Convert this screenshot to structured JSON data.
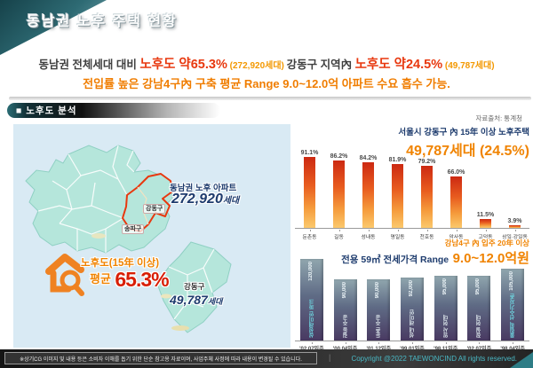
{
  "slide_title": "동남권 노후 주택 현황",
  "headline": {
    "seg1": "동남권 전체세대 대비 ",
    "seg2": "노후도 약65.3%",
    "seg3": " (272,920세대) ",
    "seg4": "강동구 지역內 ",
    "seg5": "노후도 약24.5%",
    "seg6": " (49,787세대)",
    "line2": "전입률 높은 강남4구內 구축 평균 Range 9.0~12.0억 아파트 수요 흡수 가능."
  },
  "section_bar": {
    "label": "■ 노후도 분석"
  },
  "source_note": "자료출처: 통계청",
  "map_panel": {
    "region_callout_title": "동남권 노후 아파트",
    "region_callout_value": "272,920",
    "region_callout_unit": "세대",
    "map_label_gangdong": "강동구",
    "map_label_songpa": "송파구",
    "aging_label": "노후도(15年 이상)",
    "aging_prefix": "평균",
    "aging_value": "65.3%",
    "detail_label": "강동구",
    "detail_value": "49,787",
    "detail_unit": "세대",
    "colors": {
      "panel_bg": "#d9eaf4",
      "district_fill": "#b5e6db",
      "highlight_stroke": "#e8380f",
      "icon_orange": "#ef8222"
    }
  },
  "chart1_title": {
    "line1": "서울시 강동구 內 15年 이상 노후주택",
    "line2": "49,787세대 (24.5%)"
  },
  "chart2_title": {
    "line1": "강남4구 內 입주 20年 이상",
    "line2_prefix": "전용 59㎡ 전세가격 Range",
    "line2_value": "9.0~12.0억원"
  },
  "footer": {
    "disclaimer": "※상기CG 이미지 및 내용 등은 소비자 이해를 돕기 위한 단순 참고용 자료이며, 사업주체 사정에 따라 내용이 변경될 수 있습니다.",
    "separator": "|",
    "copyright": "Copyright @2022 TAEWONCIND All rights reserved."
  },
  "chart_data": [
    {
      "type": "bar",
      "title": "서울시 강동구 內 15年 이상 노후주택 49,787세대 (24.5%)",
      "categories": [
        "둔촌동",
        "길동",
        "성내동",
        "명일동",
        "천호동",
        "암사동",
        "고덕동",
        "상일·강일동"
      ],
      "values": [
        91.1,
        86.2,
        84.2,
        81.9,
        79.2,
        66.0,
        11.5,
        3.9
      ],
      "value_labels": [
        "91.1%",
        "86.2%",
        "84.2%",
        "81.9%",
        "79.2%",
        "66.0%",
        "11.5%",
        "3.9%"
      ],
      "unit": "%",
      "ylim": [
        0,
        100
      ],
      "grid": false,
      "legend": "none",
      "bar_color_top": "#cc2912",
      "bar_color_bottom": "#fbc96d"
    },
    {
      "type": "bar",
      "title": "강남4구 內 입주 20年 이상 전용 59㎡ 전세가격 Range 9.0~12.0억원",
      "categories": [
        "'02.07입주",
        "'00.04입주",
        "'01.12입주",
        "'99.01입주",
        "'98.11입주",
        "'02.07입주",
        "'98.04입주"
      ],
      "values": [
        120000,
        90000,
        90000,
        92000,
        95000,
        95000,
        105000
      ],
      "value_labels": [
        "120,000",
        "90,000",
        "90,000",
        "92,000",
        "95,000",
        "95,000",
        "105,000"
      ],
      "bar_names": [
        "삼성래미안 파크",
        "길동 주공",
        "둔촌 주공",
        "성내 래미안",
        "암사 현대",
        "잠실 현대",
        "올림픽 선수기자촌"
      ],
      "name_highlight_indexes": [
        0,
        6
      ],
      "unit": "만원",
      "ylim": [
        0,
        130000
      ],
      "grid": false,
      "legend": "none",
      "bar_color_top": "#90a6ae",
      "bar_color_bottom": "#493a62",
      "highlight_name_color": "#6fd8e2"
    }
  ]
}
